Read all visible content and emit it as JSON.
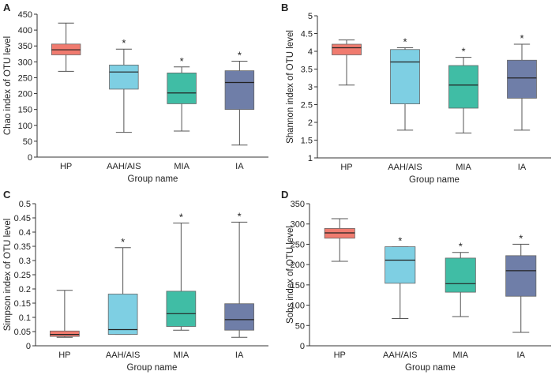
{
  "chart_data": [
    {
      "panel": "A",
      "type": "boxplot",
      "ylabel": "Chao index of OTU level",
      "xlabel": "Group name",
      "ylim": [
        0,
        450
      ],
      "yticks": [
        0,
        50,
        100,
        150,
        200,
        250,
        300,
        350,
        400,
        450
      ],
      "categories": [
        "HP",
        "AAH/AIS",
        "MIA",
        "IA"
      ],
      "colors": [
        "#f07b6f",
        "#7ecfe3",
        "#40bda5",
        "#6f7ea8"
      ],
      "boxes": [
        {
          "min": 270,
          "q1": 322,
          "median": 338,
          "q3": 356,
          "max": 422,
          "star": ""
        },
        {
          "min": 78,
          "q1": 214,
          "median": 268,
          "q3": 290,
          "max": 340,
          "star": "*"
        },
        {
          "min": 82,
          "q1": 168,
          "median": 202,
          "q3": 265,
          "max": 284,
          "star": "*"
        },
        {
          "min": 38,
          "q1": 150,
          "median": 235,
          "q3": 272,
          "max": 302,
          "star": "*"
        }
      ]
    },
    {
      "panel": "B",
      "type": "boxplot",
      "ylabel": "Shannon index of OTU level",
      "xlabel": "Group name",
      "ylim": [
        1,
        5
      ],
      "yticks": [
        1,
        1.5,
        2,
        2.5,
        3,
        3.5,
        4,
        4.5,
        5
      ],
      "categories": [
        "HP",
        "AAH/AIS",
        "MIA",
        "IA"
      ],
      "colors": [
        "#f07b6f",
        "#7ecfe3",
        "#40bda5",
        "#6f7ea8"
      ],
      "boxes": [
        {
          "min": 3.05,
          "q1": 3.9,
          "median": 4.1,
          "q3": 4.2,
          "max": 4.32,
          "star": ""
        },
        {
          "min": 1.78,
          "q1": 2.52,
          "median": 3.7,
          "q3": 4.05,
          "max": 4.1,
          "star": "*"
        },
        {
          "min": 1.7,
          "q1": 2.4,
          "median": 3.05,
          "q3": 3.6,
          "max": 3.83,
          "star": "*"
        },
        {
          "min": 1.78,
          "q1": 2.68,
          "median": 3.25,
          "q3": 3.75,
          "max": 4.2,
          "star": "*"
        }
      ]
    },
    {
      "panel": "C",
      "type": "boxplot",
      "ylabel": "Simpson index of OTU level",
      "xlabel": "Group name",
      "ylim": [
        0,
        0.5
      ],
      "yticks": [
        0,
        0.05,
        0.1,
        0.15,
        0.2,
        0.25,
        0.3,
        0.35,
        0.4,
        0.45,
        0.5
      ],
      "categories": [
        "HP",
        "AAH/AIS",
        "MIA",
        "IA"
      ],
      "colors": [
        "#f07b6f",
        "#7ecfe3",
        "#40bda5",
        "#6f7ea8"
      ],
      "boxes": [
        {
          "min": 0.03,
          "q1": 0.033,
          "median": 0.04,
          "q3": 0.052,
          "max": 0.195,
          "star": ""
        },
        {
          "min": 0.04,
          "q1": 0.04,
          "median": 0.057,
          "q3": 0.182,
          "max": 0.345,
          "star": "*"
        },
        {
          "min": 0.055,
          "q1": 0.068,
          "median": 0.113,
          "q3": 0.192,
          "max": 0.432,
          "star": "*"
        },
        {
          "min": 0.03,
          "q1": 0.055,
          "median": 0.092,
          "q3": 0.148,
          "max": 0.435,
          "star": "*"
        }
      ]
    },
    {
      "panel": "D",
      "type": "boxplot",
      "ylabel": "Sobs index of OTU level",
      "xlabel": "Group name",
      "ylim": [
        0,
        350
      ],
      "yticks": [
        0,
        50,
        100,
        150,
        200,
        250,
        300,
        350
      ],
      "categories": [
        "HP",
        "AAH/AIS",
        "MIA",
        "IA"
      ],
      "colors": [
        "#f07b6f",
        "#7ecfe3",
        "#40bda5",
        "#6f7ea8"
      ],
      "boxes": [
        {
          "min": 208,
          "q1": 265,
          "median": 278,
          "q3": 289,
          "max": 313,
          "star": ""
        },
        {
          "min": 67,
          "q1": 154,
          "median": 211,
          "q3": 244,
          "max": 244,
          "star": "*"
        },
        {
          "min": 72,
          "q1": 132,
          "median": 153,
          "q3": 216,
          "max": 230,
          "star": "*"
        },
        {
          "min": 33,
          "q1": 122,
          "median": 185,
          "q3": 222,
          "max": 250,
          "star": "*"
        }
      ]
    }
  ]
}
